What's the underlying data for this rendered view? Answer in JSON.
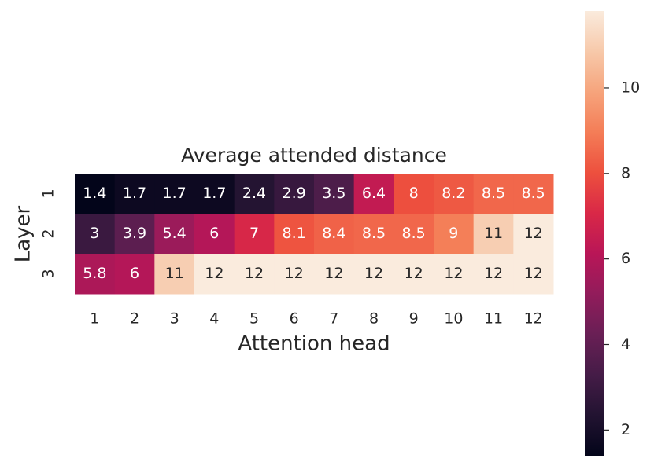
{
  "chart_data": {
    "type": "heatmap",
    "title": "Average attended distance",
    "x_label": "Attention head",
    "y_label": "Layer",
    "categories": [
      "1",
      "2",
      "3",
      "4",
      "5",
      "6",
      "7",
      "8",
      "9",
      "10",
      "11",
      "12"
    ],
    "rows": [
      "1",
      "2",
      "3"
    ],
    "values": [
      [
        1.4,
        1.7,
        1.7,
        1.7,
        2.4,
        2.9,
        3.5,
        6.4,
        8,
        8.2,
        8.5,
        8.5
      ],
      [
        3,
        3.9,
        5.4,
        6,
        7,
        8.1,
        8.4,
        8.5,
        8.5,
        9,
        11,
        12
      ],
      [
        5.8,
        6,
        11,
        12,
        12,
        12,
        12,
        12,
        12,
        12,
        12,
        12
      ]
    ],
    "colormap": "rocket",
    "clim": [
      1.4,
      11.8
    ],
    "cticks": [
      2,
      4,
      6,
      8,
      10
    ]
  }
}
